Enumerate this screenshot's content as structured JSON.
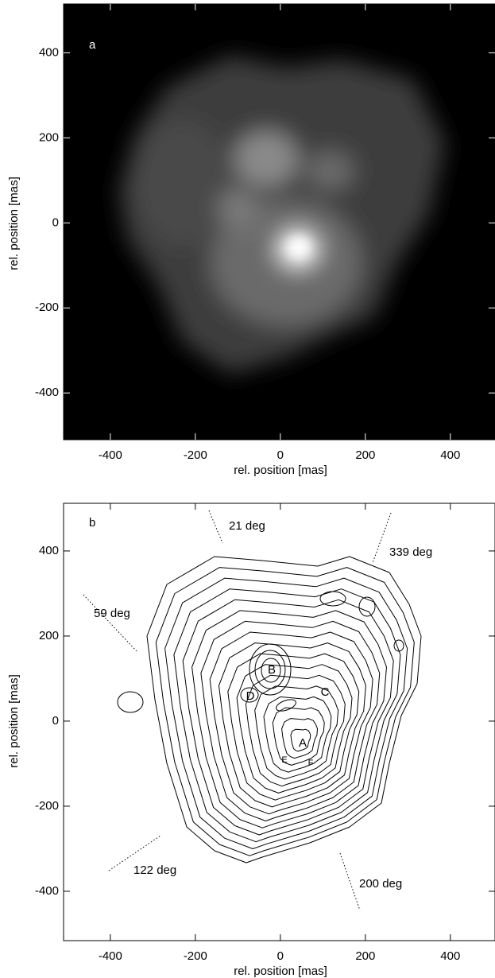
{
  "chart_data": [
    {
      "type": "image",
      "label": "a",
      "xlabel": "rel. position [mas]",
      "ylabel": "rel. position [mas]",
      "xlim": [
        -510,
        505
      ],
      "ylim": [
        -510,
        515
      ],
      "xticks": [
        -400,
        -200,
        0,
        200,
        400
      ],
      "yticks": [
        -400,
        -200,
        0,
        200,
        400
      ]
    },
    {
      "type": "contour",
      "label": "b",
      "xlabel": "rel. position [mas]",
      "ylabel": "rel. position [mas]",
      "xlim": [
        -510,
        505
      ],
      "ylim": [
        -516,
        512
      ],
      "xticks": [
        -400,
        -200,
        0,
        200,
        400
      ],
      "yticks": [
        -400,
        -200,
        0,
        200,
        400
      ],
      "annotations": [
        "21 deg",
        "339 deg",
        "59 deg",
        "122 deg",
        "200 deg"
      ],
      "components": [
        "A",
        "B",
        "C",
        "D",
        "E",
        "F"
      ]
    }
  ]
}
